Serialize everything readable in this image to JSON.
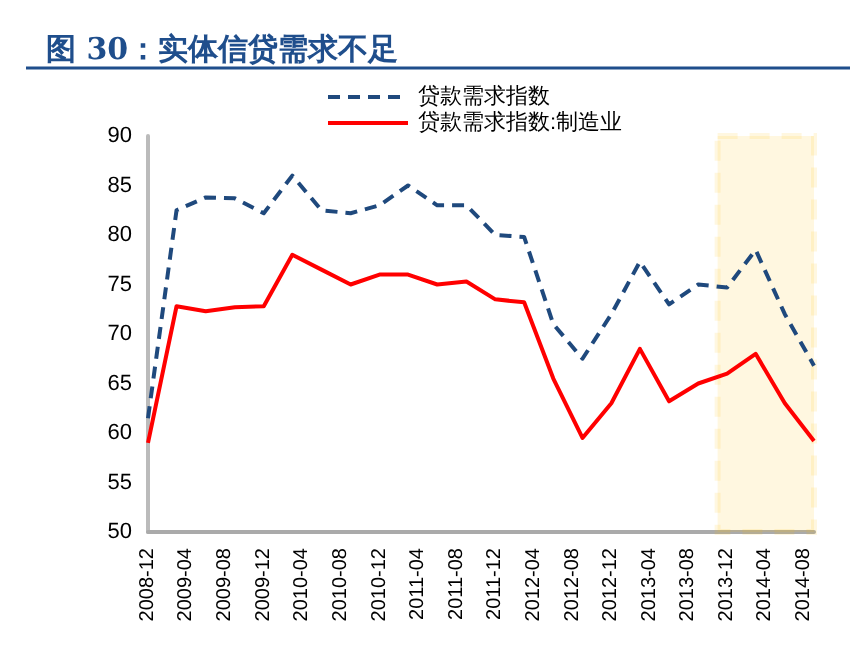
{
  "chart_data": {
    "type": "line",
    "title": "图 30：实体信贷需求不足",
    "x": [
      "2008-12",
      "2009-03",
      "2009-06",
      "2009-09",
      "2009-12",
      "2010-03",
      "2010-06",
      "2010-09",
      "2010-12",
      "2011-03",
      "2011-06",
      "2011-09",
      "2011-12",
      "2012-03",
      "2012-06",
      "2012-09",
      "2012-12",
      "2013-03",
      "2013-06",
      "2013-09",
      "2013-12",
      "2014-03",
      "2014-06",
      "2014-09"
    ],
    "series": [
      {
        "name": "贷款需求指数",
        "color": "#1f497d",
        "line_style": "dashed",
        "values": [
          61.5,
          82.5,
          83.8,
          83.7,
          82.2,
          86,
          82.5,
          82.2,
          83,
          85,
          83,
          83,
          80,
          79.8,
          71,
          67.5,
          72,
          77.3,
          73,
          75,
          74.7,
          78.5,
          72,
          66.8
        ]
      },
      {
        "name": "贷款需求指数:制造业",
        "color": "#ff0000",
        "line_style": "solid",
        "values": [
          59,
          72.8,
          72.3,
          72.7,
          72.8,
          78,
          76.5,
          75,
          76,
          76,
          75,
          75.3,
          73.5,
          73.2,
          65.5,
          59.5,
          63,
          68.5,
          63.2,
          65,
          66,
          68,
          63,
          59.2
        ]
      }
    ],
    "xlim": [
      "2008-12",
      "2014-09"
    ],
    "xticks": [
      "2008-12",
      "2009-04",
      "2009-08",
      "2009-12",
      "2010-04",
      "2010-08",
      "2010-12",
      "2011-04",
      "2011-08",
      "2011-12",
      "2012-04",
      "2012-08",
      "2012-12",
      "2013-04",
      "2013-08",
      "2013-12",
      "2014-04",
      "2014-08"
    ],
    "ylim": [
      50,
      90
    ],
    "yticks": [
      50,
      55,
      60,
      65,
      70,
      75,
      80,
      85,
      90
    ],
    "bands": [
      {
        "axis": "x",
        "from": "2013-11",
        "to": "2014-09",
        "color": "#ffc000"
      }
    ],
    "grid": false,
    "legend": "top",
    "marker": "none"
  }
}
